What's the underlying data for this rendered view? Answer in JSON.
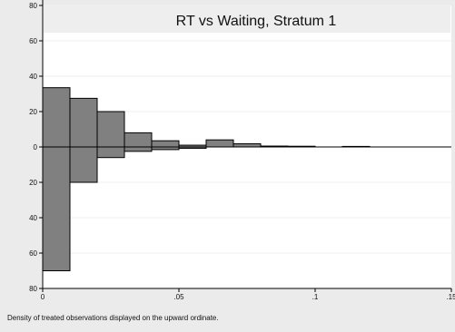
{
  "chart_data": {
    "type": "bar",
    "title": "RT vs Waiting, Stratum 1",
    "note": "Density of treated observations displayed on the upward ordinate.",
    "xlim": [
      0,
      0.15
    ],
    "ylim": [
      -80,
      80
    ],
    "x_ticks": [
      {
        "value": 0,
        "label": "0"
      },
      {
        "value": 0.05,
        "label": ".05"
      },
      {
        "value": 0.1,
        "label": ".1"
      },
      {
        "value": 0.15,
        "label": ".15"
      }
    ],
    "y_ticks": [
      {
        "value": 80,
        "label": "80"
      },
      {
        "value": 60,
        "label": "60"
      },
      {
        "value": 40,
        "label": "40"
      },
      {
        "value": 20,
        "label": "20"
      },
      {
        "value": 0,
        "label": "0"
      },
      {
        "value": -20,
        "label": "20"
      },
      {
        "value": -40,
        "label": "40"
      },
      {
        "value": -60,
        "label": "60"
      },
      {
        "value": -80,
        "label": "80"
      }
    ],
    "bin_width": 0.01,
    "upper_bars": [
      {
        "x0": 0,
        "value": 33.5
      },
      {
        "x0": 0.01,
        "value": 27.5
      },
      {
        "x0": 0.02,
        "value": 20
      },
      {
        "x0": 0.03,
        "value": 8
      },
      {
        "x0": 0.04,
        "value": 3.5
      },
      {
        "x0": 0.05,
        "value": 1
      },
      {
        "x0": 0.06,
        "value": 4
      },
      {
        "x0": 0.07,
        "value": 1.8
      },
      {
        "x0": 0.08,
        "value": 0.5
      },
      {
        "x0": 0.09,
        "value": 0.4
      },
      {
        "x0": 0.11,
        "value": 0.3
      }
    ],
    "lower_bars": [
      {
        "x0": 0,
        "value": 70
      },
      {
        "x0": 0.01,
        "value": 20
      },
      {
        "x0": 0.02,
        "value": 6
      },
      {
        "x0": 0.03,
        "value": 2.5
      },
      {
        "x0": 0.04,
        "value": 1.5
      },
      {
        "x0": 0.05,
        "value": 0.8
      }
    ],
    "colors": {
      "background": "#ebebeb",
      "plot_background": "#ffffff",
      "bar_fill": "#808080",
      "bar_stroke": "#000000",
      "title_bar": "#eeeeee"
    }
  }
}
